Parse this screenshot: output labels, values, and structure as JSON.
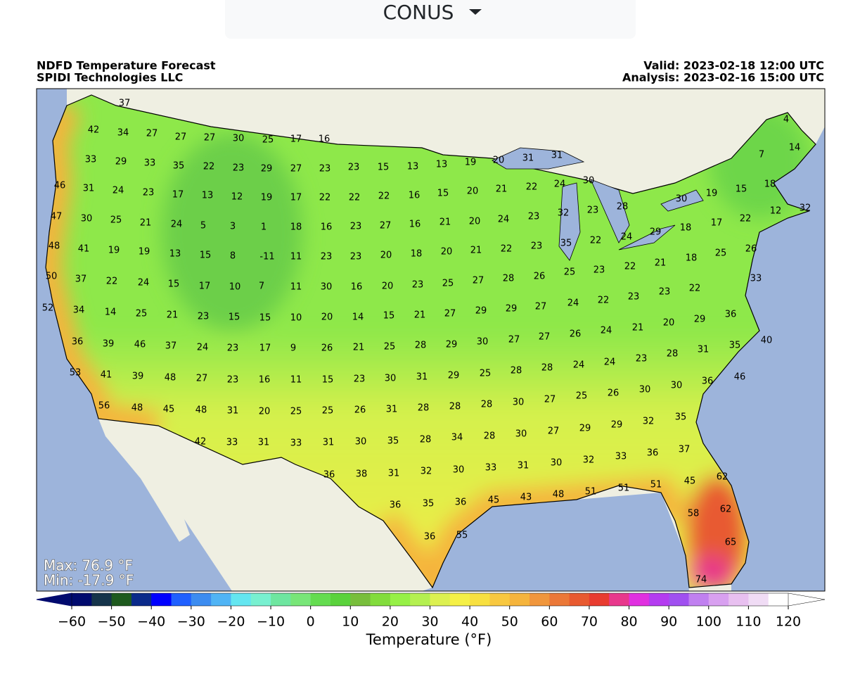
{
  "region_selector": "CONUS",
  "header": {
    "title": "NDFD Temperature Forecast",
    "organization": "SPIDI Technologies LLC",
    "valid": "Valid: 2023-02-18 12:00 UTC",
    "analysis": "Analysis: 2023-02-16 15:00 UTC"
  },
  "stats": {
    "max": "Max: 76.9 °F",
    "min": "Min: -17.9 °F"
  },
  "temperature_labels": [
    37,
    42,
    34,
    27,
    27,
    27,
    30,
    25,
    17,
    16,
    33,
    29,
    33,
    35,
    22,
    23,
    29,
    27,
    23,
    23,
    15,
    13,
    13,
    19,
    20,
    31,
    31,
    46,
    31,
    24,
    23,
    17,
    13,
    12,
    19,
    17,
    22,
    22,
    22,
    16,
    15,
    20,
    21,
    22,
    24,
    30,
    30,
    19,
    15,
    18,
    7,
    4,
    14,
    47,
    30,
    25,
    21,
    24,
    5,
    3,
    1,
    18,
    16,
    23,
    27,
    16,
    21,
    20,
    24,
    23,
    32,
    23,
    28,
    22,
    17,
    18,
    29,
    24,
    32,
    12,
    48,
    41,
    19,
    19,
    13,
    15,
    8,
    -11,
    11,
    23,
    23,
    20,
    18,
    20,
    21,
    22,
    23,
    35,
    22,
    26,
    25,
    18,
    21,
    22,
    23,
    25,
    50,
    37,
    22,
    24,
    15,
    17,
    10,
    7,
    11,
    30,
    16,
    20,
    23,
    25,
    27,
    28,
    26,
    33,
    22,
    23,
    23,
    22,
    24,
    27,
    29,
    29,
    27,
    21,
    15,
    14,
    20,
    10,
    15,
    15,
    23,
    21,
    25,
    14,
    34,
    52,
    36,
    29,
    20,
    21,
    24,
    26,
    27,
    27,
    30,
    29,
    28,
    25,
    21,
    26,
    9,
    17,
    23,
    24,
    37,
    46,
    39,
    36,
    40,
    35,
    31,
    28,
    23,
    24,
    24,
    28,
    28,
    25,
    29,
    31,
    30,
    23,
    15,
    11,
    16,
    23,
    27,
    48,
    39,
    41,
    53,
    46,
    36,
    30,
    30,
    26,
    25,
    27,
    30,
    28,
    28,
    28,
    31,
    26,
    25,
    25,
    20,
    31,
    48,
    45,
    48,
    56,
    35,
    32,
    29,
    29,
    27,
    30,
    28,
    34,
    28,
    35,
    30,
    31,
    33,
    31,
    33,
    42,
    37,
    36,
    33,
    32,
    30,
    31,
    33,
    30,
    32,
    31,
    38,
    36,
    62,
    45,
    51,
    51,
    51,
    48,
    43,
    45,
    36,
    35,
    36,
    62,
    58,
    55,
    36,
    65,
    74
  ],
  "colorbar": {
    "label": "Temperature (°F)",
    "xlim": [
      -60,
      120
    ],
    "ticks": [
      {
        "value": -60,
        "label": "−60"
      },
      {
        "value": -50,
        "label": "−50"
      },
      {
        "value": -40,
        "label": "−40"
      },
      {
        "value": -30,
        "label": "−30"
      },
      {
        "value": -20,
        "label": "−20"
      },
      {
        "value": -10,
        "label": "−10"
      },
      0,
      10,
      20,
      30,
      40,
      50,
      60,
      70,
      80,
      90,
      100,
      110,
      120
    ],
    "levels": [
      -60,
      -55,
      -50,
      -45,
      -40,
      -35,
      -30,
      -25,
      -20,
      -15,
      -10,
      -5,
      0,
      5,
      10,
      15,
      20,
      25,
      30,
      35,
      40,
      45,
      50,
      55,
      60,
      65,
      70,
      75,
      80,
      85,
      90,
      95,
      100,
      105,
      110,
      115,
      120
    ],
    "colors": [
      "#000a6e",
      "#15344a",
      "#1e5a1e",
      "#0a2a8a",
      "#0000ff",
      "#2060ff",
      "#3c8cf0",
      "#50b4f5",
      "#64e6f0",
      "#78f0d0",
      "#6ee6a0",
      "#78e678",
      "#64dc50",
      "#5ad23c",
      "#78be3c",
      "#82dc3c",
      "#96f046",
      "#b4f050",
      "#dcf050",
      "#f5f046",
      "#f8e040",
      "#f8c840",
      "#f5b43c",
      "#f0963c",
      "#eb7838",
      "#e85a30",
      "#e83c30",
      "#e8388c",
      "#e030e0",
      "#b43cf0",
      "#a050f0",
      "#c080f0",
      "#d8a0f0",
      "#e8c0f0",
      "#f0dcf5",
      "#ffffff"
    ],
    "under_color": "#000a6e",
    "over_color": "#ffffff"
  }
}
